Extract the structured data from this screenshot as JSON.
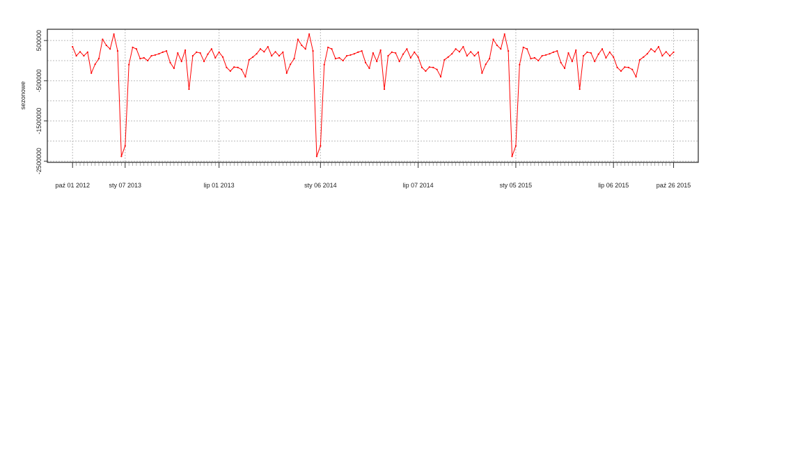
{
  "chart_data": {
    "type": "line",
    "ylabel": "sezonowe",
    "color": "#ff0000",
    "grid": true,
    "x": [
      "2012-10-01",
      "2012-10-08",
      "2012-10-15",
      "2012-10-22",
      "2012-10-29",
      "2012-11-05",
      "2012-11-12",
      "2012-11-19",
      "2012-11-26",
      "2012-12-03",
      "2012-12-10",
      "2012-12-17",
      "2012-12-24",
      "2012-12-31",
      "2013-01-07",
      "2013-01-14",
      "2013-01-21",
      "2013-01-28",
      "2013-02-04",
      "2013-02-11",
      "2013-02-18",
      "2013-02-25",
      "2013-03-04",
      "2013-03-11",
      "2013-03-18",
      "2013-03-25",
      "2013-04-01",
      "2013-04-08",
      "2013-04-15",
      "2013-04-22",
      "2013-04-29",
      "2013-05-06",
      "2013-05-13",
      "2013-05-20",
      "2013-05-27",
      "2013-06-03",
      "2013-06-10",
      "2013-06-17",
      "2013-06-24",
      "2013-07-01",
      "2013-07-08",
      "2013-07-15",
      "2013-07-22",
      "2013-07-29",
      "2013-08-05",
      "2013-08-12",
      "2013-08-19",
      "2013-08-26",
      "2013-09-02",
      "2013-09-09",
      "2013-09-16",
      "2013-09-23",
      "2013-09-30",
      "2013-10-07",
      "2013-10-14",
      "2013-10-21",
      "2013-10-28",
      "2013-11-04",
      "2013-11-11",
      "2013-11-18",
      "2013-11-25",
      "2013-12-02",
      "2013-12-09",
      "2013-12-16",
      "2013-12-23",
      "2013-12-30",
      "2014-01-06",
      "2014-01-13",
      "2014-01-20",
      "2014-01-27",
      "2014-02-03",
      "2014-02-10",
      "2014-02-17",
      "2014-02-24",
      "2014-03-03",
      "2014-03-10",
      "2014-03-17",
      "2014-03-24",
      "2014-03-31",
      "2014-04-07",
      "2014-04-14",
      "2014-04-21",
      "2014-04-28",
      "2014-05-05",
      "2014-05-12",
      "2014-05-19",
      "2014-05-26",
      "2014-06-02",
      "2014-06-09",
      "2014-06-16",
      "2014-06-23",
      "2014-06-30",
      "2014-07-07",
      "2014-07-14",
      "2014-07-21",
      "2014-07-28",
      "2014-08-04",
      "2014-08-11",
      "2014-08-18",
      "2014-08-25",
      "2014-09-01",
      "2014-09-08",
      "2014-09-15",
      "2014-09-22",
      "2014-09-29",
      "2014-10-06",
      "2014-10-13",
      "2014-10-20",
      "2014-10-27",
      "2014-11-03",
      "2014-11-10",
      "2014-11-17",
      "2014-11-24",
      "2014-12-01",
      "2014-12-08",
      "2014-12-15",
      "2014-12-22",
      "2014-12-29",
      "2015-01-05",
      "2015-01-12",
      "2015-01-19",
      "2015-01-26",
      "2015-02-02",
      "2015-02-09",
      "2015-02-16",
      "2015-02-23",
      "2015-03-02",
      "2015-03-09",
      "2015-03-16",
      "2015-03-23",
      "2015-03-30",
      "2015-04-06",
      "2015-04-13",
      "2015-04-20",
      "2015-04-27",
      "2015-05-04",
      "2015-05-11",
      "2015-05-18",
      "2015-05-25",
      "2015-06-01",
      "2015-06-08",
      "2015-06-15",
      "2015-06-22",
      "2015-06-29",
      "2015-07-06",
      "2015-07-13",
      "2015-07-20",
      "2015-07-27",
      "2015-08-03",
      "2015-08-10",
      "2015-08-17",
      "2015-08-24",
      "2015-08-31",
      "2015-09-07",
      "2015-09-14",
      "2015-09-21",
      "2015-09-28",
      "2015-10-05",
      "2015-10-12",
      "2015-10-19",
      "2015-10-26"
    ],
    "values": [
      345000,
      120000,
      220000,
      120000,
      210000,
      -310000,
      -90000,
      50000,
      530000,
      380000,
      290000,
      660000,
      240000,
      -2380000,
      -2120000,
      -100000,
      330000,
      290000,
      50000,
      70000,
      0,
      120000,
      140000,
      170000,
      210000,
      240000,
      -50000,
      -190000,
      190000,
      -20000,
      260000,
      -710000,
      120000,
      210000,
      190000,
      -20000,
      160000,
      290000,
      70000,
      210000,
      90000,
      -170000,
      -260000,
      -160000,
      -170000,
      -220000,
      -400000,
      20000,
      90000,
      170000,
      290000,
      220000,
      345000,
      120000,
      220000,
      120000,
      210000,
      -310000,
      -90000,
      50000,
      530000,
      380000,
      290000,
      660000,
      240000,
      -2380000,
      -2120000,
      -100000,
      330000,
      290000,
      50000,
      70000,
      0,
      120000,
      140000,
      170000,
      210000,
      240000,
      -50000,
      -190000,
      190000,
      -20000,
      260000,
      -710000,
      120000,
      210000,
      190000,
      -20000,
      160000,
      290000,
      70000,
      210000,
      90000,
      -170000,
      -260000,
      -160000,
      -170000,
      -220000,
      -400000,
      20000,
      90000,
      170000,
      290000,
      220000,
      345000,
      120000,
      220000,
      120000,
      210000,
      -310000,
      -90000,
      50000,
      530000,
      380000,
      290000,
      660000,
      240000,
      -2380000,
      -2120000,
      -100000,
      330000,
      290000,
      50000,
      70000,
      0,
      120000,
      140000,
      170000,
      210000,
      240000,
      -50000,
      -190000,
      190000,
      -20000,
      260000,
      -710000,
      120000,
      210000,
      190000,
      -20000,
      160000,
      290000,
      70000,
      210000,
      90000,
      -170000,
      -260000,
      -160000,
      -170000,
      -220000,
      -400000,
      20000,
      90000,
      170000,
      290000,
      220000,
      345000,
      120000,
      220000,
      120000,
      210000
    ],
    "xlim": [
      "2012-08-15",
      "2015-12-11"
    ],
    "xticks": [
      {
        "value": "2012-10-01",
        "label": "paź 01 2012"
      },
      {
        "value": "2013-01-07",
        "label": "sty 07 2013"
      },
      {
        "value": "2013-07-01",
        "label": "lip 01 2013"
      },
      {
        "value": "2014-01-06",
        "label": "sty 06 2014"
      },
      {
        "value": "2014-07-07",
        "label": "lip 07 2014"
      },
      {
        "value": "2015-01-05",
        "label": "sty 05 2015"
      },
      {
        "value": "2015-07-06",
        "label": "lip 06 2015"
      },
      {
        "value": "2015-10-26",
        "label": "paź 26 2015"
      }
    ],
    "ylim": [
      -2530000,
      780000
    ],
    "yticks": [
      500000,
      -500000,
      -1500000,
      -2500000
    ],
    "ygrid": [
      500000,
      0,
      -500000,
      -1000000,
      -1500000,
      -2000000,
      -2500000
    ]
  }
}
